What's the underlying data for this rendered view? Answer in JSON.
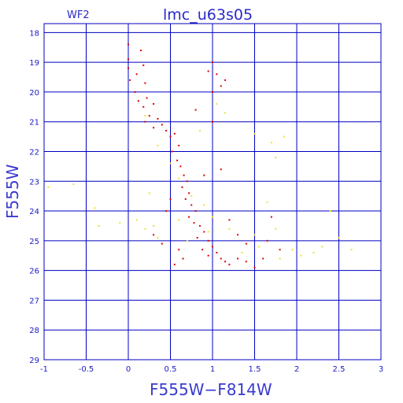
{
  "chart_data": {
    "type": "scatter",
    "title": "lmc_u63s05",
    "subtitle": "WF2",
    "xlabel": "F555W−F814W",
    "ylabel": "F555W",
    "xlim": [
      -1,
      3
    ],
    "ylim": [
      29,
      17.7
    ],
    "y_inverted": true,
    "grid": true,
    "x_ticks": [
      -1,
      -0.5,
      0,
      0.5,
      1,
      1.5,
      2,
      2.5,
      3
    ],
    "x_tick_labels": [
      "-1",
      "-0.5",
      "0",
      "0.5",
      "1",
      "1.5",
      "2",
      "2.5",
      "3"
    ],
    "y_ticks": [
      18,
      19,
      20,
      21,
      22,
      23,
      24,
      25,
      26,
      27,
      28,
      29
    ],
    "y_tick_labels": [
      "18",
      "19",
      "20",
      "21",
      "22",
      "23",
      "24",
      "25",
      "26",
      "27",
      "28",
      "29"
    ],
    "series": [
      {
        "color": "#e00000",
        "points": [
          [
            0.0,
            18.4
          ],
          [
            0.0,
            18.9
          ],
          [
            0.0,
            19.2
          ],
          [
            0.02,
            19.6
          ],
          [
            0.1,
            19.4
          ],
          [
            0.15,
            18.6
          ],
          [
            0.18,
            19.1
          ],
          [
            0.2,
            19.7
          ],
          [
            0.08,
            20.0
          ],
          [
            0.12,
            20.3
          ],
          [
            0.18,
            20.5
          ],
          [
            0.22,
            20.2
          ],
          [
            0.3,
            20.4
          ],
          [
            0.25,
            20.8
          ],
          [
            0.35,
            20.9
          ],
          [
            0.4,
            21.1
          ],
          [
            0.45,
            21.3
          ],
          [
            0.2,
            21.0
          ],
          [
            0.3,
            21.2
          ],
          [
            0.5,
            21.5
          ],
          [
            0.55,
            21.4
          ],
          [
            0.6,
            21.8
          ],
          [
            0.52,
            22.0
          ],
          [
            0.58,
            22.3
          ],
          [
            0.62,
            22.5
          ],
          [
            0.66,
            22.8
          ],
          [
            0.7,
            23.0
          ],
          [
            0.64,
            23.2
          ],
          [
            0.72,
            23.4
          ],
          [
            0.68,
            23.6
          ],
          [
            0.75,
            23.8
          ],
          [
            0.8,
            24.0
          ],
          [
            0.72,
            24.2
          ],
          [
            0.78,
            24.4
          ],
          [
            0.85,
            24.5
          ],
          [
            0.9,
            24.7
          ],
          [
            0.82,
            24.9
          ],
          [
            0.95,
            25.0
          ],
          [
            1.0,
            25.2
          ],
          [
            0.88,
            25.3
          ],
          [
            1.05,
            25.4
          ],
          [
            1.1,
            25.6
          ],
          [
            0.95,
            25.5
          ],
          [
            1.15,
            25.7
          ],
          [
            1.2,
            25.8
          ],
          [
            1.3,
            25.6
          ],
          [
            1.4,
            25.7
          ],
          [
            1.5,
            25.9
          ],
          [
            0.6,
            25.3
          ],
          [
            0.55,
            25.8
          ],
          [
            0.65,
            25.6
          ],
          [
            1.0,
            19.0
          ],
          [
            1.05,
            19.4
          ],
          [
            1.1,
            19.8
          ],
          [
            0.95,
            19.3
          ],
          [
            1.15,
            19.6
          ],
          [
            1.0,
            20.0
          ],
          [
            0.8,
            20.6
          ],
          [
            1.0,
            21.0
          ],
          [
            1.2,
            24.3
          ],
          [
            1.3,
            24.8
          ],
          [
            1.4,
            25.1
          ],
          [
            1.6,
            25.6
          ],
          [
            1.7,
            24.2
          ],
          [
            1.65,
            25.0
          ],
          [
            1.8,
            25.3
          ],
          [
            0.3,
            24.8
          ],
          [
            0.45,
            24.0
          ],
          [
            0.9,
            22.8
          ],
          [
            1.1,
            22.6
          ],
          [
            0.5,
            23.6
          ],
          [
            0.4,
            25.1
          ]
        ]
      },
      {
        "color": "#f0e030",
        "points": [
          [
            -0.95,
            23.2
          ],
          [
            -0.65,
            23.1
          ],
          [
            -0.4,
            23.9
          ],
          [
            -0.35,
            24.5
          ],
          [
            -0.1,
            24.4
          ],
          [
            0.1,
            24.3
          ],
          [
            0.2,
            24.6
          ],
          [
            0.3,
            24.5
          ],
          [
            0.35,
            24.9
          ],
          [
            0.6,
            24.3
          ],
          [
            0.75,
            23.5
          ],
          [
            0.9,
            23.8
          ],
          [
            1.0,
            24.2
          ],
          [
            1.2,
            24.6
          ],
          [
            1.5,
            24.8
          ],
          [
            1.65,
            23.7
          ],
          [
            1.75,
            24.6
          ],
          [
            1.8,
            25.6
          ],
          [
            1.95,
            25.3
          ],
          [
            2.2,
            25.4
          ],
          [
            2.3,
            25.2
          ],
          [
            2.5,
            24.9
          ],
          [
            2.65,
            25.3
          ],
          [
            1.5,
            21.4
          ],
          [
            1.7,
            21.7
          ],
          [
            1.75,
            22.2
          ],
          [
            1.85,
            21.5
          ],
          [
            0.35,
            21.8
          ],
          [
            0.5,
            22.4
          ],
          [
            0.25,
            23.4
          ],
          [
            0.85,
            21.3
          ],
          [
            1.05,
            20.4
          ],
          [
            1.15,
            20.7
          ],
          [
            0.2,
            20.8
          ],
          [
            0.6,
            22.9
          ],
          [
            0.95,
            24.7
          ],
          [
            1.35,
            25.4
          ],
          [
            1.55,
            25.2
          ],
          [
            2.05,
            25.5
          ],
          [
            2.4,
            24.0
          ],
          [
            0.7,
            25.0
          ]
        ]
      }
    ]
  }
}
